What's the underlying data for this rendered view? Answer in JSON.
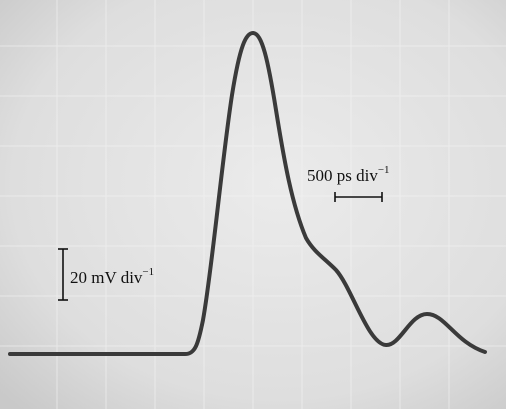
{
  "scale_bars": {
    "time": {
      "text": "500 ps div",
      "exponent": "−1"
    },
    "voltage": {
      "text": "20 mV div",
      "exponent": "−1"
    }
  }
}
